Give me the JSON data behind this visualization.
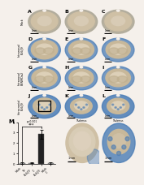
{
  "background_color": "#f5f0eb",
  "panel_label": "M",
  "bar_categories": [
    "Mock",
    "IN\nBL6/J9",
    "IC\nBL6/J9",
    "Mock\nIC"
  ],
  "bar_values": [
    0.05,
    0.08,
    2.85,
    0.06
  ],
  "bar_colors": [
    "#aaaaaa",
    "#aaaaaa",
    "#222222",
    "#aaaaaa"
  ],
  "bar_error": [
    0.05,
    0.06,
    0.45,
    0.05
  ],
  "ylim": [
    0,
    4
  ],
  "yticks": [
    0,
    1,
    2,
    3,
    4
  ],
  "brain_tan": "#c8b89a",
  "brain_blue": "#4a7cb5",
  "brain_light_blue": "#8ab0d4",
  "brain_inner": "#ddd0b8",
  "brain_bg": "#e8e0d4",
  "row_labels": [
    "Mock",
    "Intranasal\nBL6/J9",
    "Intranasal\nB6NMDα2",
    "Intracranial\nBL6/J9"
  ],
  "col_letters": [
    "A",
    "B",
    "C",
    "D",
    "E",
    "F",
    "G",
    "H",
    "I",
    "J",
    "K",
    "L"
  ],
  "stain_configs": [
    [
      {
        "blue_rim": 0.1,
        "inner_tan": 0.7,
        "style": "minimal"
      },
      {
        "blue_rim": 0.1,
        "inner_tan": 0.7,
        "style": "minimal"
      },
      {
        "blue_rim": 0.1,
        "inner_tan": 0.7,
        "style": "minimal"
      }
    ],
    [
      {
        "blue_rim": 0.3,
        "inner_tan": 0.55,
        "style": "partial"
      },
      {
        "blue_rim": 0.35,
        "inner_tan": 0.5,
        "style": "partial"
      },
      {
        "blue_rim": 0.4,
        "inner_tan": 0.45,
        "style": "partial"
      }
    ],
    [
      {
        "blue_rim": 0.35,
        "inner_tan": 0.5,
        "style": "partial"
      },
      {
        "blue_rim": 0.4,
        "inner_tan": 0.45,
        "style": "partial"
      },
      {
        "blue_rim": 0.38,
        "inner_tan": 0.48,
        "style": "partial"
      }
    ],
    [
      {
        "blue_rim": 0.45,
        "inner_tan": 0.4,
        "style": "heavy"
      },
      {
        "blue_rim": 0.5,
        "inner_tan": 0.35,
        "style": "heavy"
      },
      {
        "blue_rim": 0.48,
        "inner_tan": 0.38,
        "style": "heavy"
      }
    ]
  ]
}
